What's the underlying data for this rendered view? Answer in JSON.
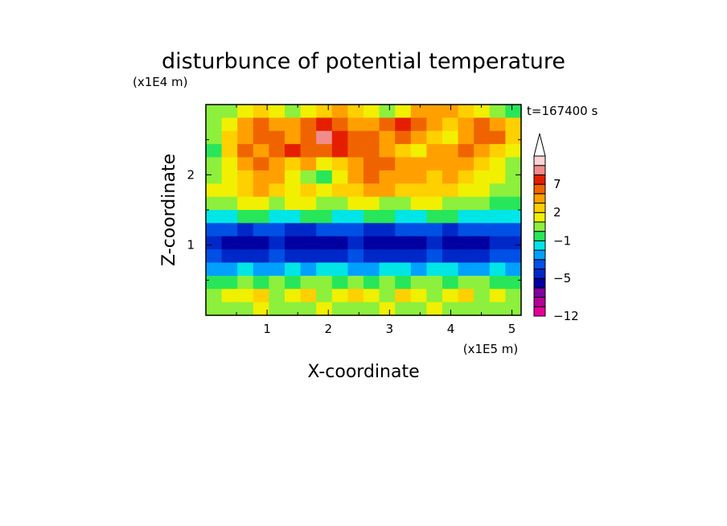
{
  "chart_data": {
    "type": "heatmap",
    "title": "disturbunce of potential temperature",
    "xlabel": "X-coordinate",
    "ylabel": "Z-coordinate",
    "x_unit": "(x1E5 m)",
    "y_unit": "(x1E4 m)",
    "time_label": "t=167400 s",
    "x_ticks": [
      "1",
      "2",
      "3",
      "4",
      "5"
    ],
    "y_ticks": [
      "1",
      "2"
    ],
    "xlim": [
      0,
      5.15
    ],
    "ylim": [
      0,
      3.0
    ],
    "colorbar": {
      "labels": [
        "7",
        "2",
        "-1",
        "-5",
        "-12"
      ],
      "label_levels": [
        7,
        2,
        -1,
        -5,
        -12
      ],
      "levels": [
        -12,
        -10,
        -8,
        -6,
        -5,
        -4,
        -3,
        -2,
        -1,
        0,
        1,
        2,
        3,
        5,
        7,
        9,
        11
      ],
      "colors": [
        "#e60099",
        "#b4009a",
        "#8000a0",
        "#0000a0",
        "#0028c8",
        "#0050e6",
        "#00a0ff",
        "#00e6e6",
        "#28e65a",
        "#8cf03c",
        "#f0f000",
        "#ffd000",
        "#ffa000",
        "#f06400",
        "#e61e00",
        "#f08c8c",
        "#ffd2d2"
      ],
      "extend": "max"
    },
    "field_rows": [
      [
        0,
        0,
        1,
        2,
        1,
        0,
        1,
        2,
        3,
        2,
        1,
        0,
        1,
        3,
        4,
        3,
        2,
        1,
        0,
        -1
      ],
      [
        0,
        1,
        3,
        5,
        4,
        3,
        5,
        8,
        6,
        4,
        3,
        5,
        7,
        5,
        3,
        2,
        3,
        5,
        4,
        2
      ],
      [
        0,
        2,
        4,
        6,
        5,
        4,
        6,
        9,
        7,
        6,
        5,
        3,
        5,
        4,
        2,
        1,
        3,
        6,
        5,
        2
      ],
      [
        -1,
        2,
        5,
        4,
        6,
        7,
        5,
        6,
        7,
        5,
        6,
        4,
        2,
        1,
        3,
        4,
        5,
        3,
        2,
        1
      ],
      [
        0,
        1,
        3,
        5,
        4,
        2,
        3,
        1,
        2,
        4,
        6,
        5,
        4,
        3,
        3,
        4,
        3,
        2,
        1,
        0
      ],
      [
        0,
        1,
        2,
        4,
        3,
        1,
        0,
        -1,
        1,
        3,
        5,
        4,
        3,
        3,
        2,
        3,
        2,
        1,
        1,
        0
      ],
      [
        1,
        1,
        2,
        3,
        2,
        1,
        2,
        1,
        2,
        2,
        3,
        3,
        2,
        2,
        2,
        2,
        1,
        1,
        0,
        0
      ],
      [
        0,
        0,
        1,
        1,
        0,
        1,
        1,
        0,
        0,
        1,
        1,
        0,
        0,
        1,
        1,
        0,
        0,
        0,
        -1,
        -1
      ],
      [
        -2,
        -2,
        -1,
        -1,
        -2,
        -2,
        -1,
        -1,
        -2,
        -2,
        -1,
        -1,
        -2,
        -2,
        -1,
        -1,
        -2,
        -2,
        -2,
        -2
      ],
      [
        -4,
        -4,
        -5,
        -4,
        -4,
        -5,
        -5,
        -4,
        -4,
        -4,
        -5,
        -5,
        -4,
        -4,
        -4,
        -5,
        -4,
        -4,
        -4,
        -4
      ],
      [
        -5,
        -6,
        -6,
        -6,
        -5,
        -6,
        -6,
        -6,
        -6,
        -5,
        -6,
        -6,
        -6,
        -6,
        -5,
        -6,
        -6,
        -6,
        -5,
        -5
      ],
      [
        -4,
        -5,
        -5,
        -5,
        -4,
        -5,
        -5,
        -5,
        -5,
        -4,
        -5,
        -5,
        -5,
        -5,
        -4,
        -5,
        -5,
        -5,
        -4,
        -4
      ],
      [
        -3,
        -3,
        -2,
        -3,
        -3,
        -2,
        -3,
        -2,
        -2,
        -3,
        -3,
        -2,
        -2,
        -3,
        -2,
        -2,
        -3,
        -3,
        -2,
        -3
      ],
      [
        -1,
        -1,
        0,
        -1,
        0,
        -1,
        0,
        0,
        -1,
        0,
        -1,
        0,
        -1,
        0,
        0,
        -1,
        0,
        0,
        -1,
        -1
      ],
      [
        0,
        1,
        1,
        2,
        0,
        1,
        2,
        0,
        1,
        2,
        1,
        0,
        2,
        1,
        0,
        1,
        2,
        0,
        1,
        0
      ],
      [
        0,
        0,
        0,
        1,
        0,
        0,
        0,
        1,
        0,
        0,
        0,
        1,
        0,
        0,
        1,
        0,
        0,
        0,
        0,
        0
      ]
    ]
  }
}
